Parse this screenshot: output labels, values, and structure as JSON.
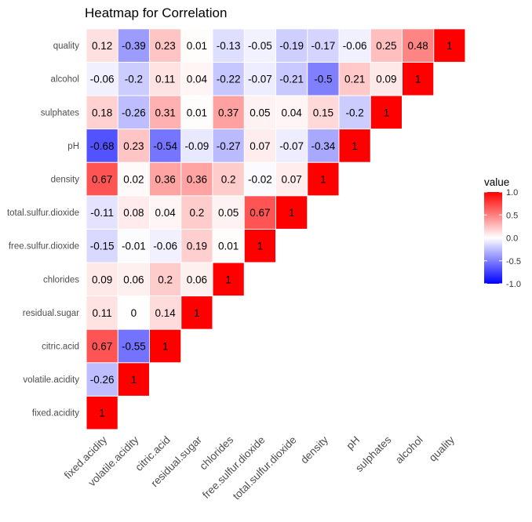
{
  "chart_data": {
    "type": "heatmap",
    "title": "Heatmap for Correlation",
    "variables": [
      "fixed.acidity",
      "volatile.acidity",
      "citric.acid",
      "residual.sugar",
      "chlorides",
      "free.sulfur.dioxide",
      "total.sulfur.dioxide",
      "density",
      "pH",
      "sulphates",
      "alcohol",
      "quality"
    ],
    "matrix": [
      [
        1
      ],
      [
        -0.26,
        1
      ],
      [
        0.67,
        -0.55,
        1
      ],
      [
        0.11,
        0,
        0.14,
        1
      ],
      [
        0.09,
        0.06,
        0.2,
        0.06,
        1
      ],
      [
        -0.15,
        -0.01,
        -0.06,
        0.19,
        0.01,
        1
      ],
      [
        -0.11,
        0.08,
        0.04,
        0.2,
        0.05,
        0.67,
        1
      ],
      [
        0.67,
        0.02,
        0.36,
        0.36,
        0.2,
        -0.02,
        0.07,
        1
      ],
      [
        -0.68,
        0.23,
        -0.54,
        -0.09,
        -0.27,
        0.07,
        -0.07,
        -0.34,
        1
      ],
      [
        0.18,
        -0.26,
        0.31,
        0.01,
        0.37,
        0.05,
        0.04,
        0.15,
        -0.2,
        1
      ],
      [
        -0.06,
        -0.2,
        0.11,
        0.04,
        -0.22,
        -0.07,
        -0.21,
        -0.5,
        0.21,
        0.09,
        1
      ],
      [
        0.12,
        -0.39,
        0.23,
        0.01,
        -0.13,
        -0.05,
        -0.19,
        -0.17,
        -0.06,
        0.25,
        0.48,
        1
      ]
    ],
    "legend": {
      "title": "value",
      "ticks": [
        "1.0",
        "0.5",
        "0.0",
        "-0.5",
        "-1.0"
      ],
      "placement": "right",
      "low_color": "#0000ff",
      "mid_color": "#ffffff",
      "high_color": "#ff0000",
      "range": [
        -1,
        1
      ]
    },
    "grid": false
  }
}
